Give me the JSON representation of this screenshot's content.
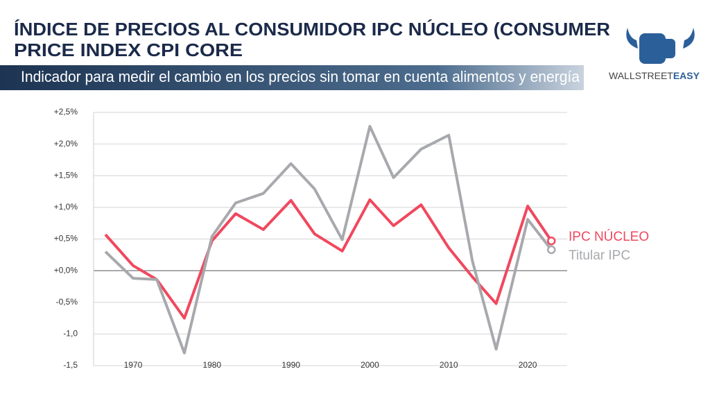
{
  "header": {
    "title": [
      "ÍNDICE DE PRECIOS AL CONSUMIDOR IPC NÚCLEO (CONSUMER",
      "PRICE INDEX CPI CORE"
    ],
    "subtitle": "Indicador para medir el cambio en los precios sin tomar en cuenta alimentos y energía",
    "logo": [
      "WALLSTREET",
      "EASY"
    ]
  },
  "chart_data": {
    "type": "line",
    "x": [
      1966.5,
      1970,
      1973,
      1976.5,
      1980,
      1983,
      1986.5,
      1990,
      1993,
      1996.5,
      2000,
      2003,
      2006.5,
      2010,
      2013,
      2016,
      2020,
      2023
    ],
    "series": [
      {
        "name": "IPC NÚCLEO",
        "color": "#f0485e",
        "values": [
          0.57,
          0.08,
          -0.14,
          -0.75,
          0.47,
          0.9,
          0.65,
          1.11,
          0.58,
          0.31,
          1.12,
          0.71,
          1.04,
          0.36,
          -0.1,
          -0.52,
          1.02,
          0.47
        ]
      },
      {
        "name": "Titular IPC",
        "color": "#a7a9ad",
        "values": [
          0.3,
          -0.12,
          -0.14,
          -1.3,
          0.54,
          1.07,
          1.22,
          1.69,
          1.29,
          0.49,
          2.28,
          1.47,
          1.92,
          2.14,
          0.15,
          -1.24,
          0.81,
          0.33
        ]
      }
    ],
    "xlim": [
      1965,
      2025
    ],
    "xticks": [
      1970,
      1980,
      1990,
      2000,
      2010,
      2020
    ],
    "ylim": [
      -1.5,
      2.5
    ],
    "yticks": [
      {
        "value": -1.5,
        "label": "-1,5"
      },
      {
        "value": -1,
        "label": "-1,0"
      },
      {
        "value": -0.5,
        "label": "-0,5%"
      },
      {
        "value": 0,
        "label": "+0,0%"
      },
      {
        "value": 0.5,
        "label": "+0,5%"
      },
      {
        "value": 1,
        "label": "+1,0%"
      },
      {
        "value": 1.5,
        "label": "+1,5%"
      },
      {
        "value": 2,
        "label": "+2,0%"
      },
      {
        "value": 2.5,
        "label": "+2,5%"
      }
    ],
    "grid": true
  }
}
